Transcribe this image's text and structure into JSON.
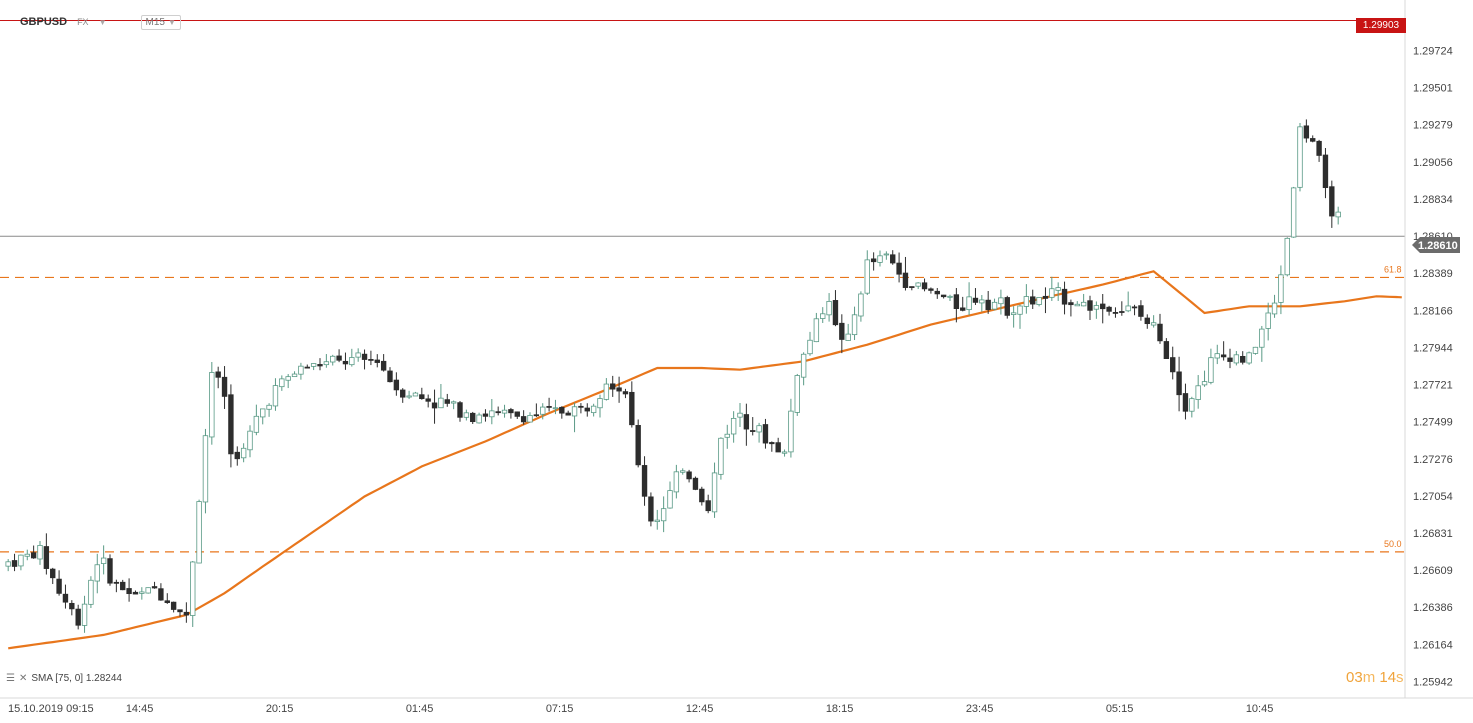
{
  "header": {
    "symbol": "GBPUSD",
    "market": "FX",
    "timeframe": "M15"
  },
  "indicator": {
    "label": "SMA [75, 0] 1.28244"
  },
  "countdown": {
    "minutes": "03",
    "minutes_unit": "m",
    "seconds": "14",
    "seconds_unit": "s"
  },
  "price_badges": {
    "high_marker": "1.29903",
    "current": "1.28610"
  },
  "colors": {
    "bull_candle": "#5a9a86",
    "bear_candle": "#2d2d2d",
    "sma": "#e8761c",
    "fib": "#e8761c",
    "high_line": "#c81414",
    "current_line": "#8a8a8a"
  },
  "chart_data": {
    "type": "candlestick",
    "symbol": "GBPUSD",
    "timeframe": "M15",
    "y_ticks": [
      "1.29724",
      "1.29501",
      "1.29279",
      "1.29056",
      "1.28834",
      "1.28610",
      "1.28389",
      "1.28166",
      "1.27944",
      "1.27721",
      "1.27499",
      "1.27276",
      "1.27054",
      "1.26831",
      "1.26609",
      "1.26386",
      "1.26164",
      "1.25942"
    ],
    "ylim": [
      1.2586,
      1.2999
    ],
    "x_ticks": [
      "15.10.2019 09:15",
      "14:45",
      "20:15",
      "01:45",
      "07:15",
      "12:45",
      "18:15",
      "23:45",
      "05:15",
      "10:45"
    ],
    "bar_count": 220,
    "levels": [
      {
        "name": "high_line",
        "value": 1.29903
      },
      {
        "name": "current_price",
        "value": 1.2861
      },
      {
        "name": "fib_61.8",
        "label": "61.8",
        "value": 1.28363
      },
      {
        "name": "fib_50.0",
        "label": "50.0",
        "value": 1.26718
      }
    ],
    "fib_labels": [
      "61.8",
      "50.0"
    ],
    "sma": {
      "period": 75,
      "last": 1.28244,
      "anchors": [
        [
          0,
          1.2614
        ],
        [
          15,
          1.2622
        ],
        [
          28,
          1.2634
        ],
        [
          34,
          1.2647
        ],
        [
          40,
          1.2663
        ],
        [
          48,
          1.2684
        ],
        [
          56,
          1.2705
        ],
        [
          65,
          1.2723
        ],
        [
          75,
          1.2738
        ],
        [
          85,
          1.2755
        ],
        [
          94,
          1.2769
        ],
        [
          102,
          1.2782
        ],
        [
          109,
          1.2782
        ],
        [
          115,
          1.2781
        ],
        [
          125,
          1.2786
        ],
        [
          135,
          1.2796
        ],
        [
          145,
          1.2808
        ],
        [
          155,
          1.2817
        ],
        [
          165,
          1.2826
        ],
        [
          172,
          1.2832
        ],
        [
          180,
          1.284
        ],
        [
          188,
          1.2815
        ],
        [
          195,
          1.2819
        ],
        [
          203,
          1.2819
        ],
        [
          210,
          1.2822
        ],
        [
          215,
          1.2825
        ],
        [
          219,
          1.28244
        ]
      ]
    },
    "price_anchors": [
      [
        0,
        1.2664
      ],
      [
        6,
        1.2672
      ],
      [
        9,
        1.2648
      ],
      [
        12,
        1.263
      ],
      [
        15,
        1.2668
      ],
      [
        18,
        1.2652
      ],
      [
        21,
        1.2645
      ],
      [
        24,
        1.265
      ],
      [
        27,
        1.264
      ],
      [
        29,
        1.2632
      ],
      [
        31,
        1.2704
      ],
      [
        33,
        1.278
      ],
      [
        35,
        1.2766
      ],
      [
        36,
        1.273
      ],
      [
        38,
        1.2732
      ],
      [
        40,
        1.2751
      ],
      [
        43,
        1.277
      ],
      [
        47,
        1.2782
      ],
      [
        51,
        1.2785
      ],
      [
        55,
        1.2786
      ],
      [
        59,
        1.2787
      ],
      [
        62,
        1.277
      ],
      [
        66,
        1.2764
      ],
      [
        70,
        1.276
      ],
      [
        74,
        1.2755
      ],
      [
        78,
        1.2754
      ],
      [
        82,
        1.2753
      ],
      [
        87,
        1.2756
      ],
      [
        92,
        1.2758
      ],
      [
        95,
        1.2776
      ],
      [
        98,
        1.2768
      ],
      [
        100,
        1.2723
      ],
      [
        102,
        1.2691
      ],
      [
        104,
        1.2697
      ],
      [
        107,
        1.2723
      ],
      [
        109,
        1.2712
      ],
      [
        111,
        1.2696
      ],
      [
        113,
        1.274
      ],
      [
        116,
        1.2756
      ],
      [
        120,
        1.2739
      ],
      [
        123,
        1.2731
      ],
      [
        125,
        1.278
      ],
      [
        128,
        1.2809
      ],
      [
        130,
        1.2826
      ],
      [
        131,
        1.2805
      ],
      [
        133,
        1.2798
      ],
      [
        136,
        1.2844
      ],
      [
        139,
        1.2849
      ],
      [
        141,
        1.2839
      ],
      [
        144,
        1.283
      ],
      [
        147,
        1.2826
      ],
      [
        150,
        1.282
      ],
      [
        154,
        1.2825
      ],
      [
        158,
        1.2818
      ],
      [
        162,
        1.2822
      ],
      [
        166,
        1.2826
      ],
      [
        170,
        1.282
      ],
      [
        174,
        1.2818
      ],
      [
        178,
        1.2816
      ],
      [
        182,
        1.2802
      ],
      [
        184,
        1.2782
      ],
      [
        186,
        1.276
      ],
      [
        188,
        1.277
      ],
      [
        190,
        1.2786
      ],
      [
        193,
        1.279
      ],
      [
        196,
        1.2787
      ],
      [
        198,
        1.2805
      ],
      [
        200,
        1.282
      ],
      [
        202,
        1.286
      ],
      [
        204,
        1.2925
      ],
      [
        206,
        1.2918
      ],
      [
        207,
        1.2905
      ],
      [
        208,
        1.2885
      ],
      [
        210,
        1.2872
      ]
    ],
    "visible_candles": 210
  }
}
